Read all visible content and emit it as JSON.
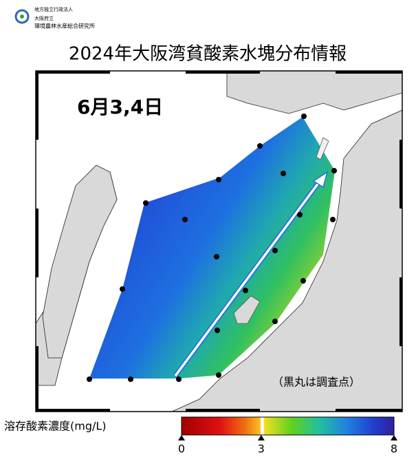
{
  "header": {
    "org_lines": [
      "地方独立行政法人",
      "大阪府立",
      "環境農林水産総合研究所"
    ],
    "title": "2024年大阪湾貧酸素水塊分布情報"
  },
  "map": {
    "date": "6月3,4日",
    "note": "（黒丸は調査点）"
  },
  "colorbar": {
    "label": "溶存酸素濃度(mg/L)",
    "lim": [
      0,
      8
    ],
    "ticks": [
      0,
      3,
      8
    ]
  }
}
